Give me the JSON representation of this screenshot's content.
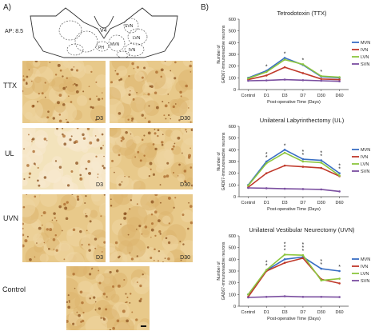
{
  "panel_a": {
    "letter": "A)",
    "ap_label": "AP: 8.5",
    "schematic_labels": [
      "V4",
      "SVN",
      "LVN",
      "MVN",
      "PH",
      "IVN"
    ],
    "rows": [
      {
        "label": "TTX",
        "tiles": [
          "D3",
          "D30"
        ]
      },
      {
        "label": "UL",
        "tiles": [
          "D3",
          "D30"
        ]
      },
      {
        "label": "UVN",
        "tiles": [
          "D3",
          "D30"
        ]
      },
      {
        "label": "Control",
        "tiles": [
          ""
        ]
      }
    ]
  },
  "panel_b": {
    "letter": "B)"
  },
  "chart_data": [
    {
      "type": "line",
      "title": "Tetrodotoxin (TTX)",
      "xlabel": "Post-operative Time (Days)",
      "ylabel": "Number of GAD67-immunoreactive neurons",
      "categories": [
        "Control",
        "D1",
        "D3",
        "D7",
        "D30",
        "D60"
      ],
      "ylim": [
        0,
        600
      ],
      "yticks": [
        0,
        100,
        200,
        300,
        400,
        500,
        600
      ],
      "series": [
        {
          "name": "MVN",
          "color": "#3a6fc4",
          "values": [
            100,
            160,
            270,
            210,
            110,
            100
          ]
        },
        {
          "name": "IVN",
          "color": "#c0392b",
          "values": [
            85,
            120,
            190,
            140,
            90,
            85
          ]
        },
        {
          "name": "LVN",
          "color": "#8dc63f",
          "values": [
            95,
            150,
            255,
            215,
            115,
            105
          ]
        },
        {
          "name": "SVN",
          "color": "#7b4fa0",
          "values": [
            75,
            78,
            85,
            80,
            75,
            70
          ]
        }
      ],
      "stars": [
        {
          "x": 1,
          "text": "*"
        },
        {
          "x": 2,
          "text": "*"
        },
        {
          "x": 3,
          "text": "*"
        },
        {
          "x": 4,
          "text": "*"
        }
      ],
      "legend_position": "right"
    },
    {
      "type": "line",
      "title": "Unilateral Labyrinthectomy (UL)",
      "xlabel": "Post-operative Time (Days)",
      "ylabel": "Number of GAD67-immunoreactive neurons",
      "categories": [
        "Control",
        "D1",
        "D3",
        "D7",
        "D30",
        "D60"
      ],
      "ylim": [
        0,
        600
      ],
      "yticks": [
        0,
        100,
        200,
        300,
        400,
        500,
        600
      ],
      "series": [
        {
          "name": "MVN",
          "color": "#3a6fc4",
          "values": [
            100,
            300,
            400,
            320,
            310,
            200
          ]
        },
        {
          "name": "IVN",
          "color": "#c0392b",
          "values": [
            80,
            200,
            265,
            255,
            245,
            175
          ]
        },
        {
          "name": "LVN",
          "color": "#8dc63f",
          "values": [
            95,
            285,
            375,
            300,
            290,
            180
          ]
        },
        {
          "name": "SVN",
          "color": "#7b4fa0",
          "values": [
            75,
            72,
            68,
            65,
            62,
            45
          ]
        }
      ],
      "stars": [
        {
          "x": 1,
          "text": "**"
        },
        {
          "x": 2,
          "text": "*"
        },
        {
          "x": 3,
          "text": "**"
        },
        {
          "x": 4,
          "text": "**"
        },
        {
          "x": 5,
          "text": "**"
        }
      ],
      "legend_position": "right"
    },
    {
      "type": "line",
      "title": "Unilateral Vestibular Neurectomy (UVN)",
      "xlabel": "Post-operative Time (Days)",
      "ylabel": "Number of GAD67-immunoreactive neurons",
      "categories": [
        "Control",
        "D1",
        "D3",
        "D7",
        "D30",
        "D60"
      ],
      "ylim": [
        0,
        600
      ],
      "yticks": [
        0,
        100,
        200,
        300,
        400,
        500,
        600
      ],
      "series": [
        {
          "name": "MVN",
          "color": "#3a6fc4",
          "values": [
            100,
            305,
            400,
            420,
            320,
            300
          ]
        },
        {
          "name": "IVN",
          "color": "#c0392b",
          "values": [
            80,
            300,
            370,
            410,
            230,
            195
          ]
        },
        {
          "name": "LVN",
          "color": "#8dc63f",
          "values": [
            100,
            310,
            440,
            435,
            220,
            235
          ]
        },
        {
          "name": "SVN",
          "color": "#7b4fa0",
          "values": [
            75,
            80,
            85,
            80,
            80,
            78
          ]
        }
      ],
      "stars": [
        {
          "x": 1,
          "text": "**"
        },
        {
          "x": 2,
          "text": "***"
        },
        {
          "x": 3,
          "text": "***"
        },
        {
          "x": 4,
          "text": "**"
        },
        {
          "x": 5,
          "text": "*"
        }
      ],
      "legend_position": "right"
    }
  ]
}
